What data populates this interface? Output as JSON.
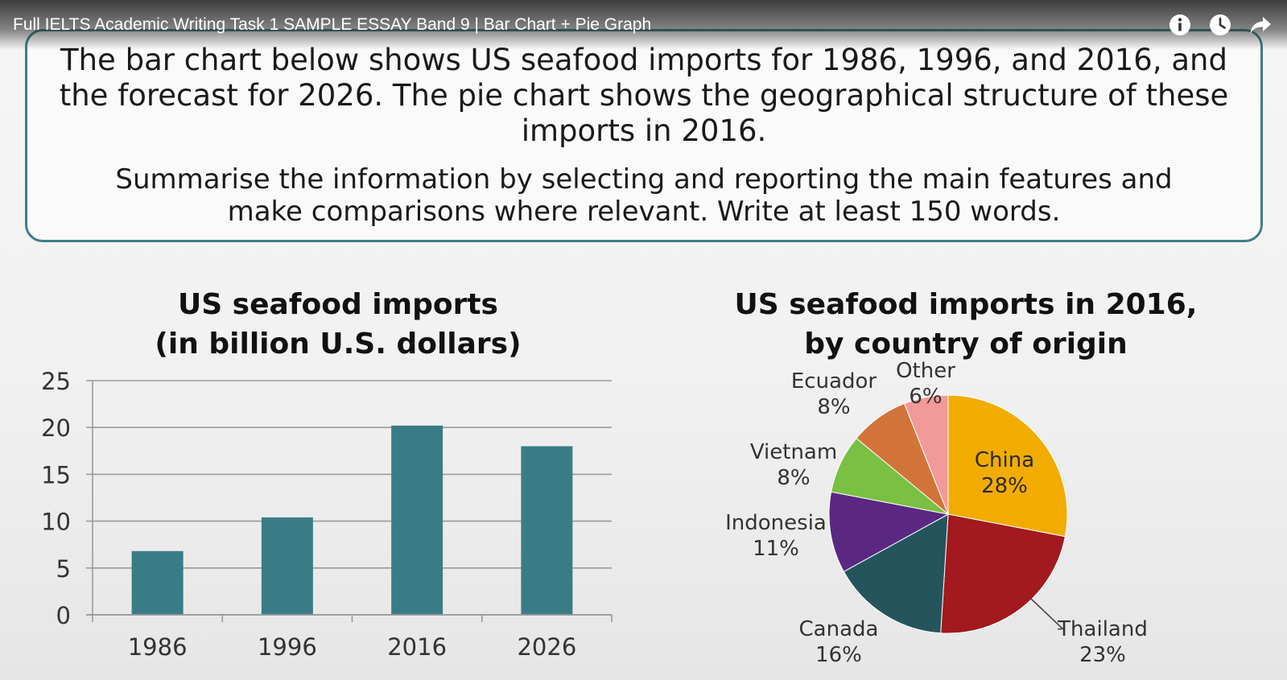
{
  "player": {
    "video_title": "Full IELTS Academic Writing Task 1 SAMPLE ESSAY Band 9 | Bar Chart + Pie Graph",
    "icons": [
      "info-icon",
      "watch-later-icon",
      "share-icon"
    ]
  },
  "task": {
    "prompt": "The bar chart below shows US seafood imports for 1986, 1996, and 2016, and the forecast for 2026. The pie chart shows the geographical structure of these imports in 2016.",
    "instruction": "Summarise the information by selecting and reporting the main features and make comparisons where relevant. Write at least 150 words."
  },
  "chart_data": [
    {
      "type": "bar",
      "title": "US seafood imports\n(in billion U.S. dollars)",
      "title_lines": [
        "US seafood imports",
        "(in billion U.S. dollars)"
      ],
      "categories": [
        "1986",
        "1996",
        "2016",
        "2026"
      ],
      "values": [
        6.8,
        10.4,
        20.2,
        18.0
      ],
      "ylim": [
        0,
        25
      ],
      "yticks": [
        0,
        5,
        10,
        15,
        20,
        25
      ],
      "grid": true,
      "color": "#3a7c86"
    },
    {
      "type": "pie",
      "title": "US seafood imports in 2016,\nby country of origin",
      "title_lines": [
        "US seafood imports in 2016,",
        "by country of origin"
      ],
      "slices": [
        {
          "label": "China",
          "value": 28,
          "pct_label": "28%",
          "color": "#f2ac00"
        },
        {
          "label": "Thailand",
          "value": 23,
          "pct_label": "23%",
          "color": "#a2191f"
        },
        {
          "label": "Canada",
          "value": 16,
          "pct_label": "16%",
          "color": "#24555c"
        },
        {
          "label": "Indonesia",
          "value": 11,
          "pct_label": "11%",
          "color": "#5a2880"
        },
        {
          "label": "Vietnam",
          "value": 8,
          "pct_label": "8%",
          "color": "#7ac043"
        },
        {
          "label": "Ecuador",
          "value": 8,
          "pct_label": "8%",
          "color": "#d2743a"
        },
        {
          "label": "Other",
          "value": 6,
          "pct_label": "6%",
          "color": "#f29a9a"
        }
      ]
    }
  ]
}
